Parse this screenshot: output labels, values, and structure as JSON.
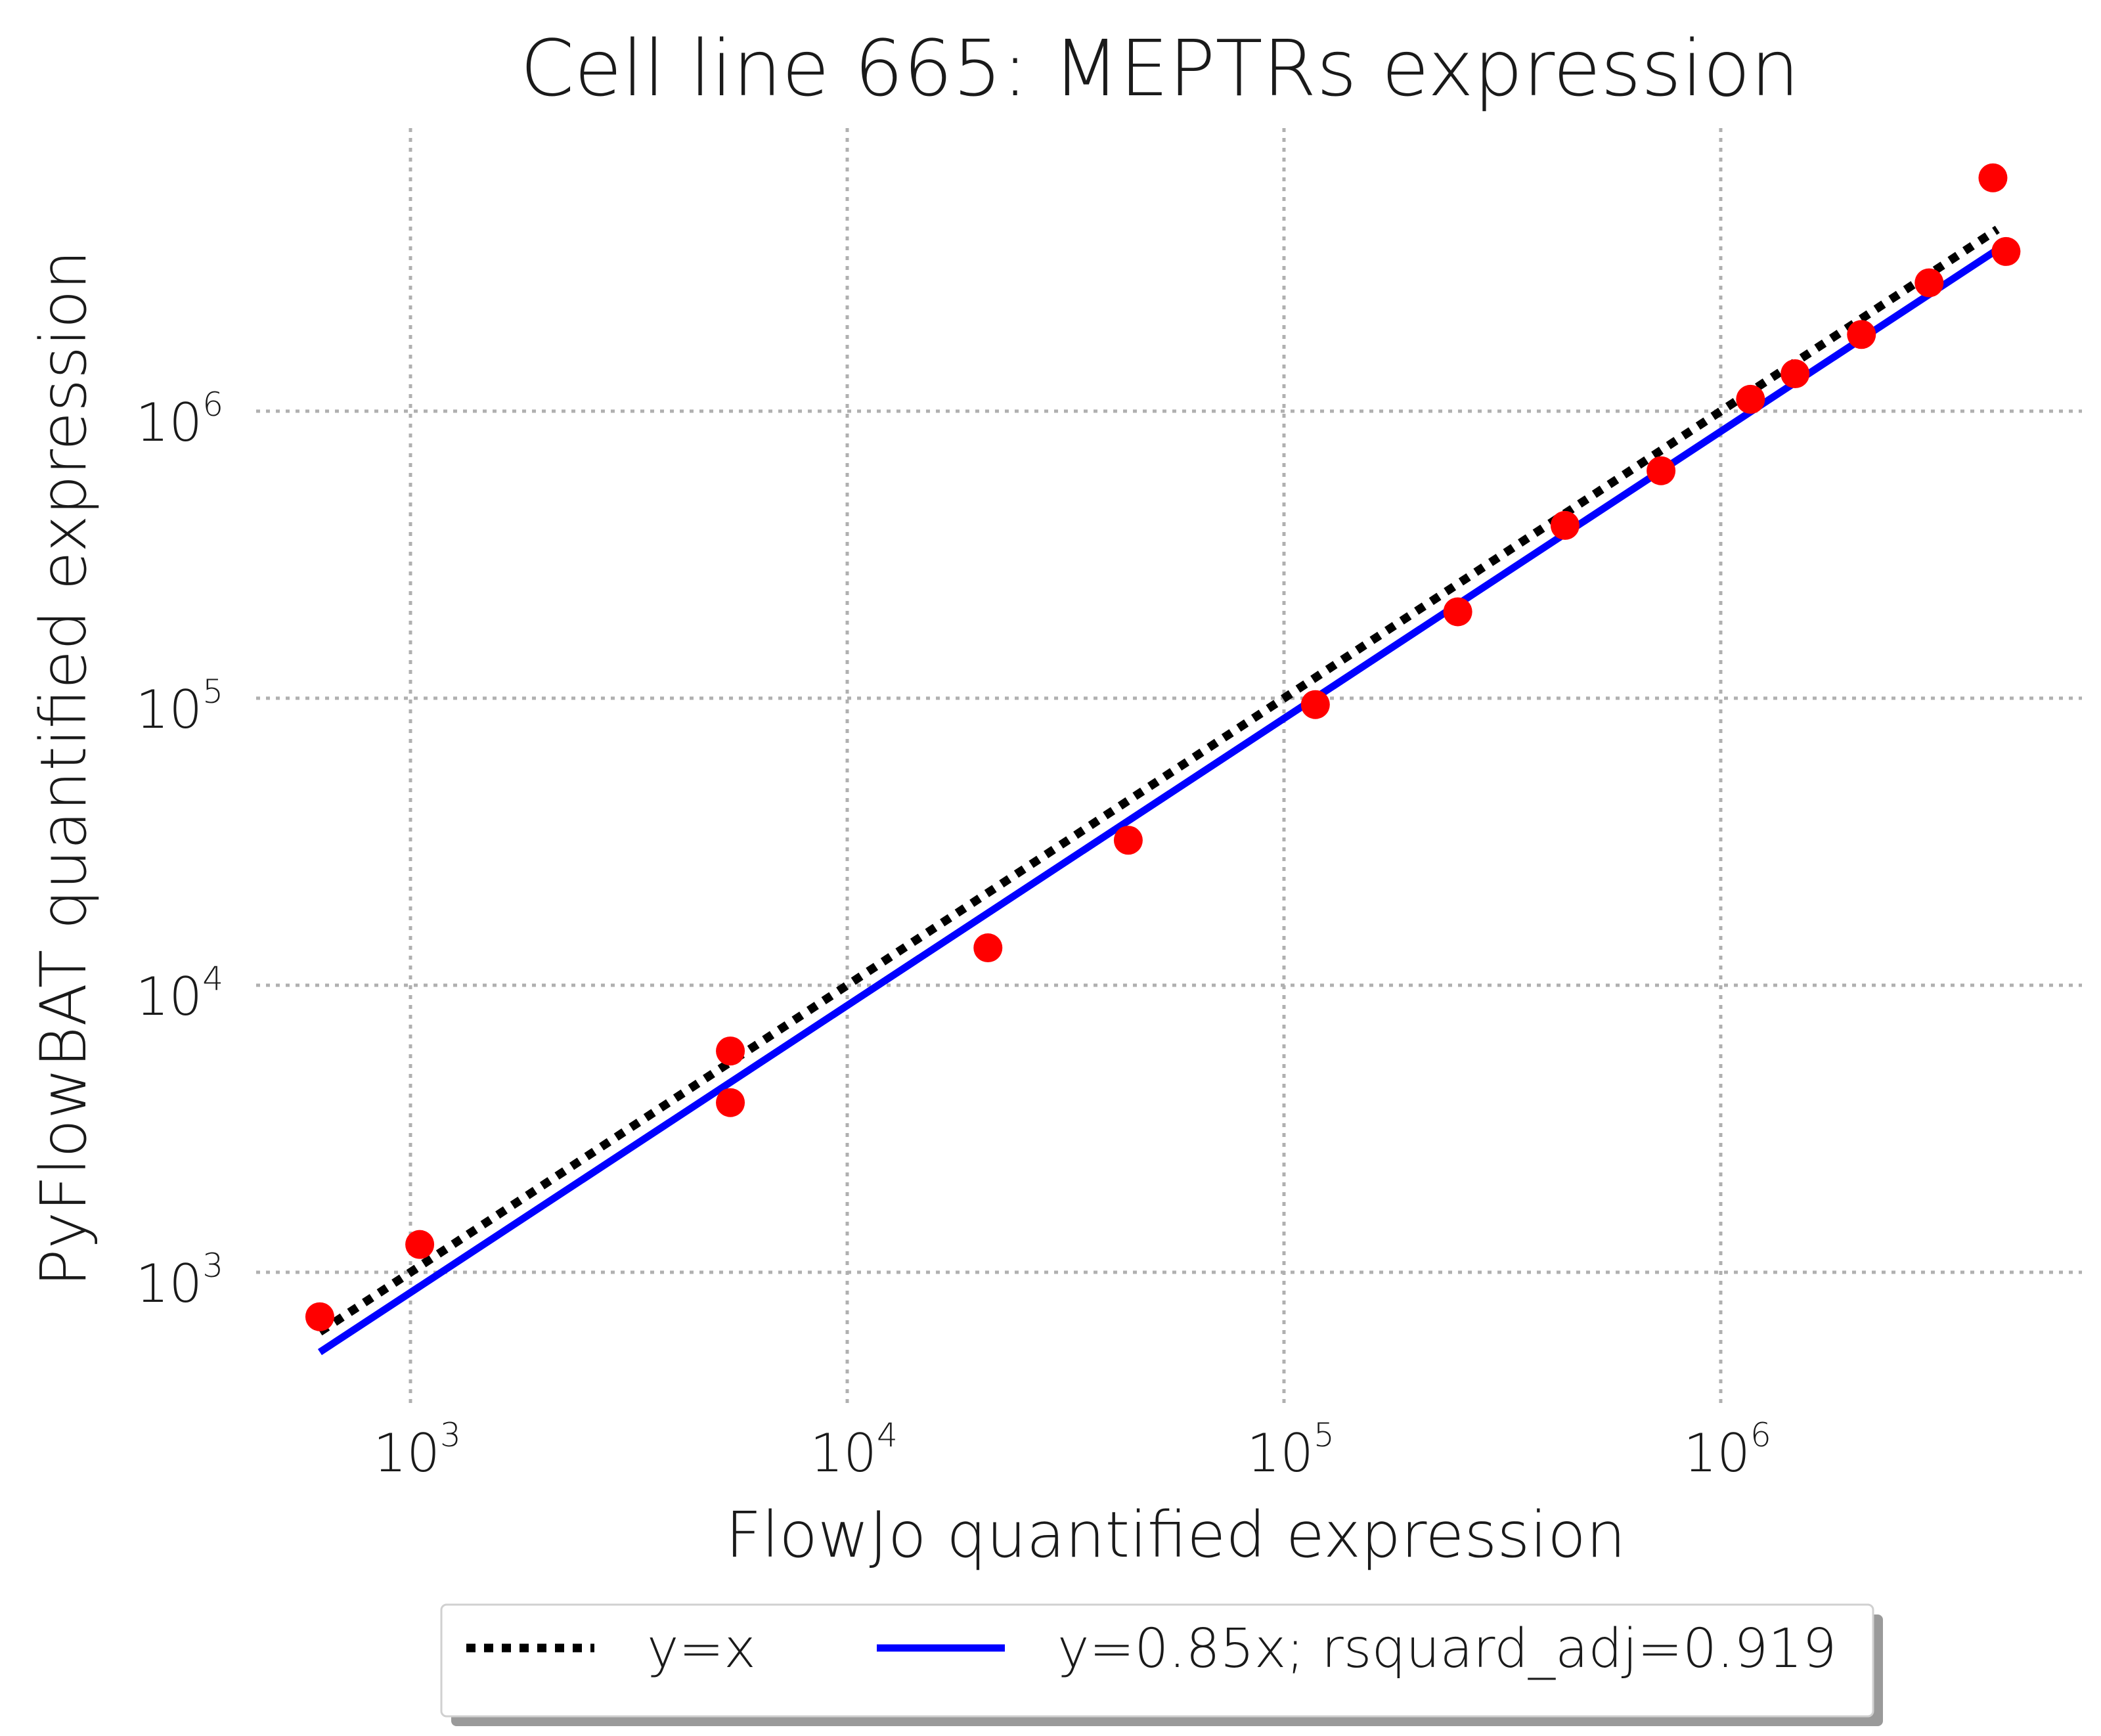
{
  "chart_data": {
    "type": "scatter",
    "title": "Cell line 665: MEPTRs expression",
    "xlabel": "FlowJo quantified expression",
    "ylabel": "PyFlowBAT quantified expression",
    "xscale": "log",
    "yscale": "log",
    "xlim": [
      400,
      6000000
    ],
    "ylim": [
      350,
      10000000
    ],
    "grid": true,
    "x_ticks": [
      {
        "base": "10",
        "exp": "3",
        "value": 1000
      },
      {
        "base": "10",
        "exp": "4",
        "value": 10000
      },
      {
        "base": "10",
        "exp": "5",
        "value": 100000
      },
      {
        "base": "10",
        "exp": "6",
        "value": 1000000
      }
    ],
    "y_ticks": [
      {
        "base": "10",
        "exp": "3",
        "value": 1000
      },
      {
        "base": "10",
        "exp": "4",
        "value": 10000
      },
      {
        "base": "10",
        "exp": "5",
        "value": 100000
      },
      {
        "base": "10",
        "exp": "6",
        "value": 1000000
      }
    ],
    "points": {
      "color": "#ff0000",
      "x": [
        620,
        1050,
        5400,
        5400,
        21000,
        44000,
        118000,
        250000,
        440000,
        730000,
        1170000,
        1480000,
        2100000,
        3000000,
        4200000,
        4500000
      ],
      "y": [
        700,
        1250,
        5900,
        3900,
        13500,
        32000,
        95000,
        200000,
        400000,
        620000,
        1100000,
        1350000,
        1850000,
        2800000,
        6500000,
        3600000
      ]
    },
    "lines": [
      {
        "name": "y=x",
        "slope": 1.0,
        "color": "#000000",
        "style": "dotted",
        "x_range": [
          620,
          4300000
        ]
      },
      {
        "name": "y=0.85x; rsquard_adj=0.919",
        "slope": 0.85,
        "color": "#0000ff",
        "style": "solid",
        "x_range": [
          620,
          4500000
        ]
      }
    ],
    "legend_position": "bottom-center-outside"
  }
}
